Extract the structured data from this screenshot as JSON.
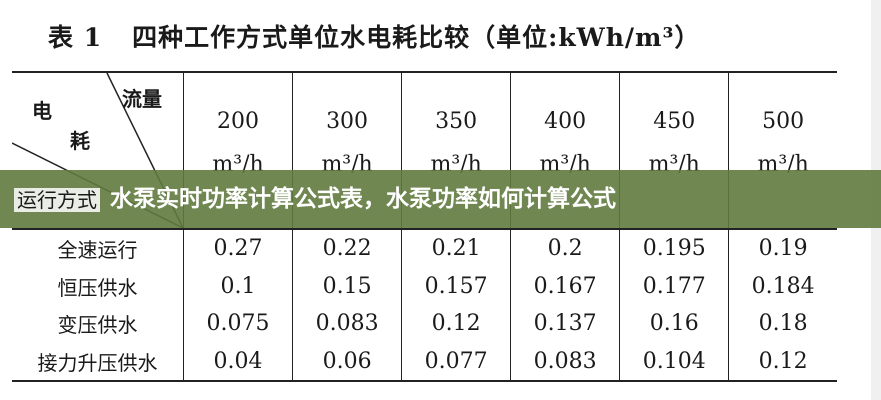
{
  "title": {
    "label": "表 1",
    "text": "四种工作方式单位水电耗比较（单位:kWh/m³）"
  },
  "corner": {
    "top_right": "流量",
    "left_top": "电",
    "left_mid": "耗",
    "bottom": "运行方式"
  },
  "columns": [
    {
      "flow": "200",
      "unit": "m³/h"
    },
    {
      "flow": "300",
      "unit": "m³/h"
    },
    {
      "flow": "350",
      "unit": "m³/h"
    },
    {
      "flow": "400",
      "unit": "m³/h"
    },
    {
      "flow": "450",
      "unit": "m³/h"
    },
    {
      "flow": "500",
      "unit": "m³/h"
    }
  ],
  "rows": [
    {
      "mode": "全速运行",
      "values": [
        "0.27",
        "0.22",
        "0.21",
        "0.2",
        "0.195",
        "0.19"
      ]
    },
    {
      "mode": "恒压供水",
      "values": [
        "0.1",
        "0.15",
        "0.157",
        "0.167",
        "0.177",
        "0.184"
      ]
    },
    {
      "mode": "变压供水",
      "values": [
        "0.075",
        "0.083",
        "0.12",
        "0.137",
        "0.16",
        "0.18"
      ]
    },
    {
      "mode": "接力升压供水",
      "values": [
        "0.04",
        "0.06",
        "0.077",
        "0.083",
        "0.104",
        "0.12"
      ]
    }
  ],
  "banner": {
    "text": "水泵实时功率计算公式表，水泵功率如何计算公式"
  },
  "colors": {
    "banner": "#607a3e"
  }
}
